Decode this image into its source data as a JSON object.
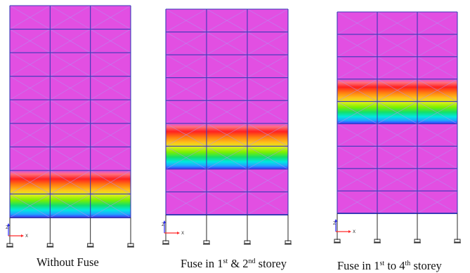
{
  "panels": [
    {
      "caption": {
        "pre": "Without Fuse",
        "sup1": "",
        "mid": "",
        "sup2": "",
        "post": ""
      },
      "stories": 9,
      "bays": 3,
      "hot_band_storeys": [
        1,
        2
      ],
      "axis_labels": {
        "z": "Z",
        "x": "X"
      }
    },
    {
      "caption": {
        "pre": "Fuse in 1",
        "sup1": "st",
        "mid": " & 2",
        "sup2": "nd",
        "post": " storey"
      },
      "stories": 9,
      "bays": 3,
      "hot_band_storeys": [
        3,
        4
      ],
      "axis_labels": {
        "z": "Z",
        "x": "X"
      }
    },
    {
      "caption": {
        "pre": "Fuse in 1",
        "sup1": "st",
        "mid": " to 4",
        "sup2": "th",
        "post": " storey"
      },
      "stories": 9,
      "bays": 3,
      "hot_band_storeys": [
        5,
        6
      ],
      "axis_labels": {
        "z": "Z",
        "x": "X"
      }
    }
  ],
  "colors": {
    "background_fill": "#e24fe2",
    "frame_line": "#3a3ab8",
    "brace_line": "#b48ff0",
    "support_line": "#2a2a2a",
    "axis_x": "#ff2a2a",
    "axis_z": "#2a2aff",
    "contour_scale": [
      "#e24fe2",
      "#ff6f7a",
      "#ff2020",
      "#ff7a10",
      "#ffc21a",
      "#dcef1c",
      "#7bf000",
      "#13e06a",
      "#00e8e0",
      "#22a2ff",
      "#3a30ff"
    ]
  }
}
